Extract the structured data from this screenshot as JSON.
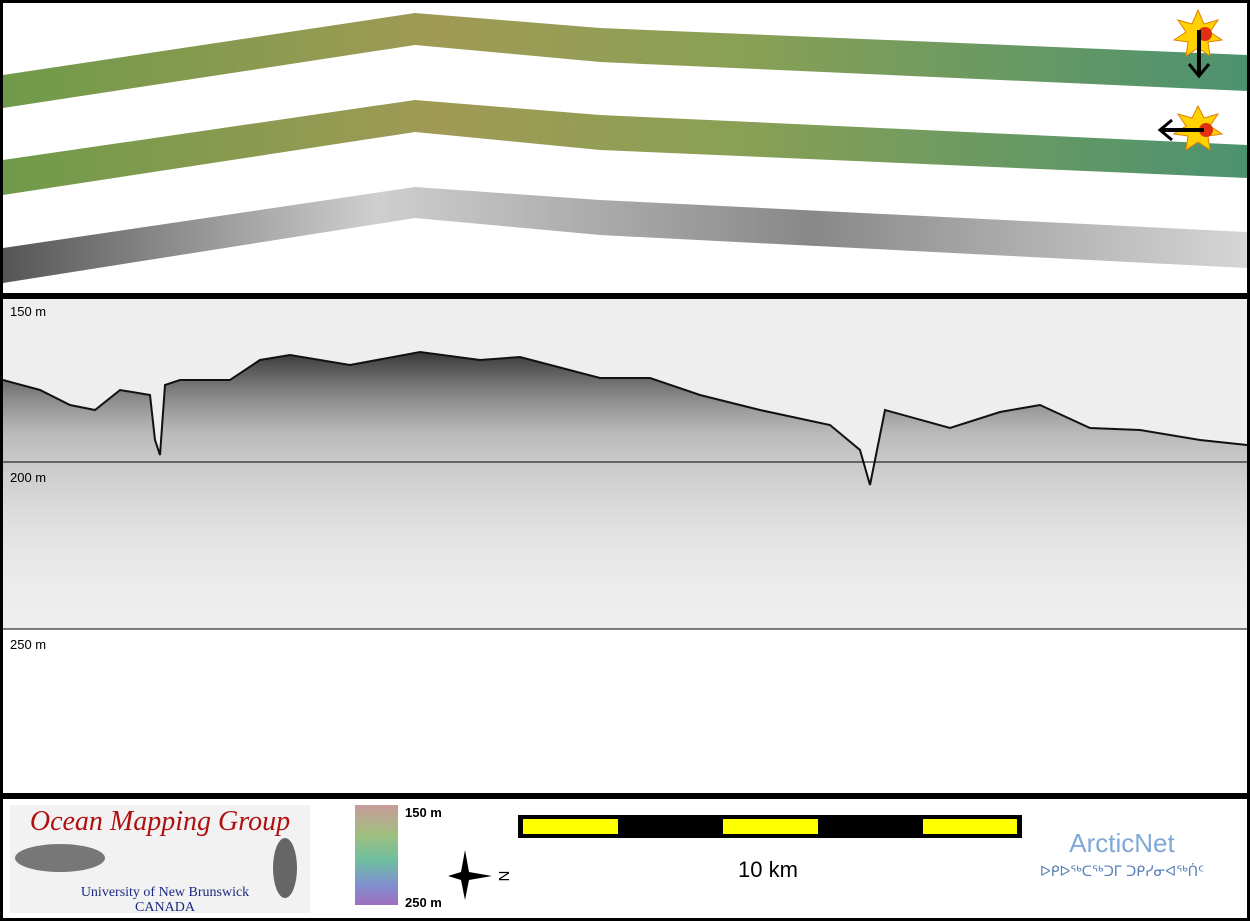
{
  "profile": {
    "depth_labels": [
      "150 m",
      "200 m",
      "250 m"
    ]
  },
  "logo": {
    "title": "Ocean Mapping Group",
    "subtitle": "University of New Brunswick",
    "country": "CANADA"
  },
  "colorbar": {
    "top_label": "150 m",
    "bottom_label": "250 m"
  },
  "compass": {
    "label": "N"
  },
  "scale_bar": {
    "label": "10 km"
  },
  "partner": {
    "name": "ArcticNet",
    "syllabics": "ᐅᑭᐅᖅᑕᖅᑐᒥ ᑐᑭᓯᓂᐊᖅᑏᑦ"
  }
}
